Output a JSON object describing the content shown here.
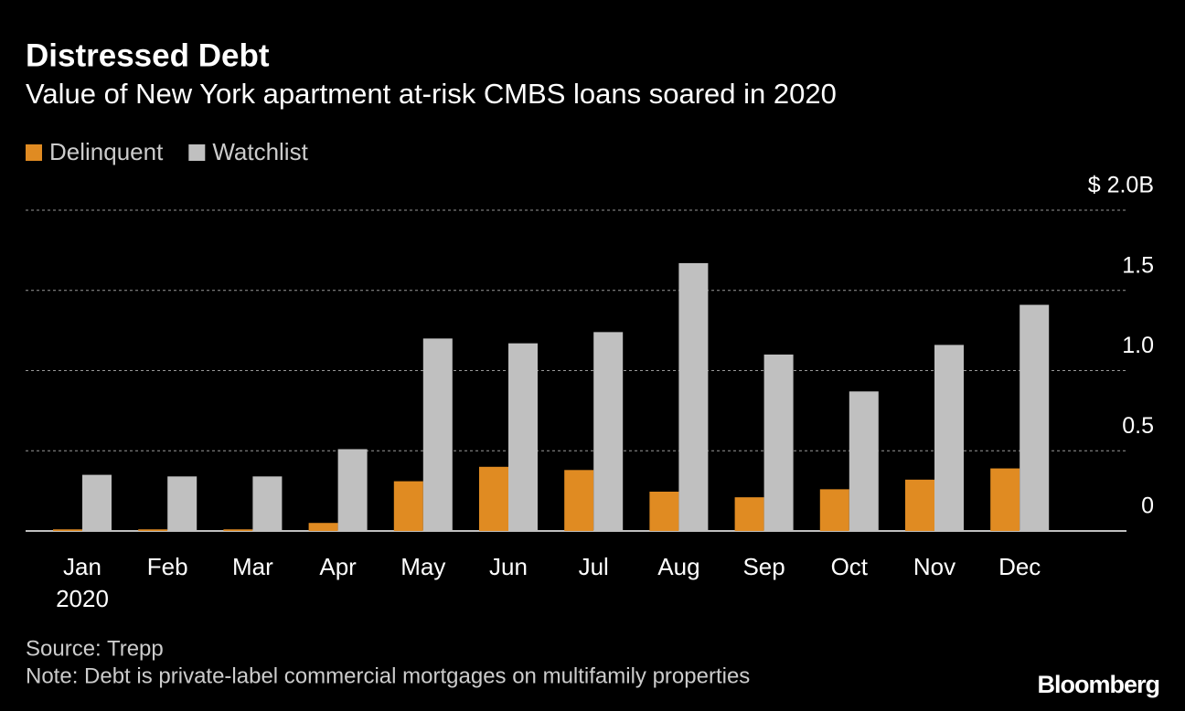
{
  "chart_data": {
    "type": "bar",
    "title": "Distressed Debt",
    "subtitle": "Value of New York apartment at-risk CMBS loans soared in 2020",
    "categories": [
      "Jan",
      "Feb",
      "Mar",
      "Apr",
      "May",
      "Jun",
      "Jul",
      "Aug",
      "Sep",
      "Oct",
      "Nov",
      "Dec"
    ],
    "year_label": "2020",
    "series": [
      {
        "name": "Delinquent",
        "color": "#e08b22",
        "values": [
          0.01,
          0.01,
          0.01,
          0.05,
          0.31,
          0.4,
          0.38,
          0.245,
          0.21,
          0.26,
          0.32,
          0.39
        ]
      },
      {
        "name": "Watchlist",
        "color": "#c0c0c0",
        "values": [
          0.35,
          0.34,
          0.34,
          0.51,
          1.2,
          1.17,
          1.24,
          1.67,
          1.1,
          0.87,
          1.16,
          1.41
        ]
      }
    ],
    "ylim": [
      0,
      2
    ],
    "yticks": [
      0,
      0.5,
      {
        "value": 1,
        "label": "1.0"
      },
      1.5,
      {
        "value": 2,
        "label": "$ 2.0B"
      }
    ],
    "grid": true,
    "source": "Source: Trepp",
    "note": "Note: Debt is private-label commercial mortgages on multifamily properties",
    "brand": "Bloomberg"
  }
}
